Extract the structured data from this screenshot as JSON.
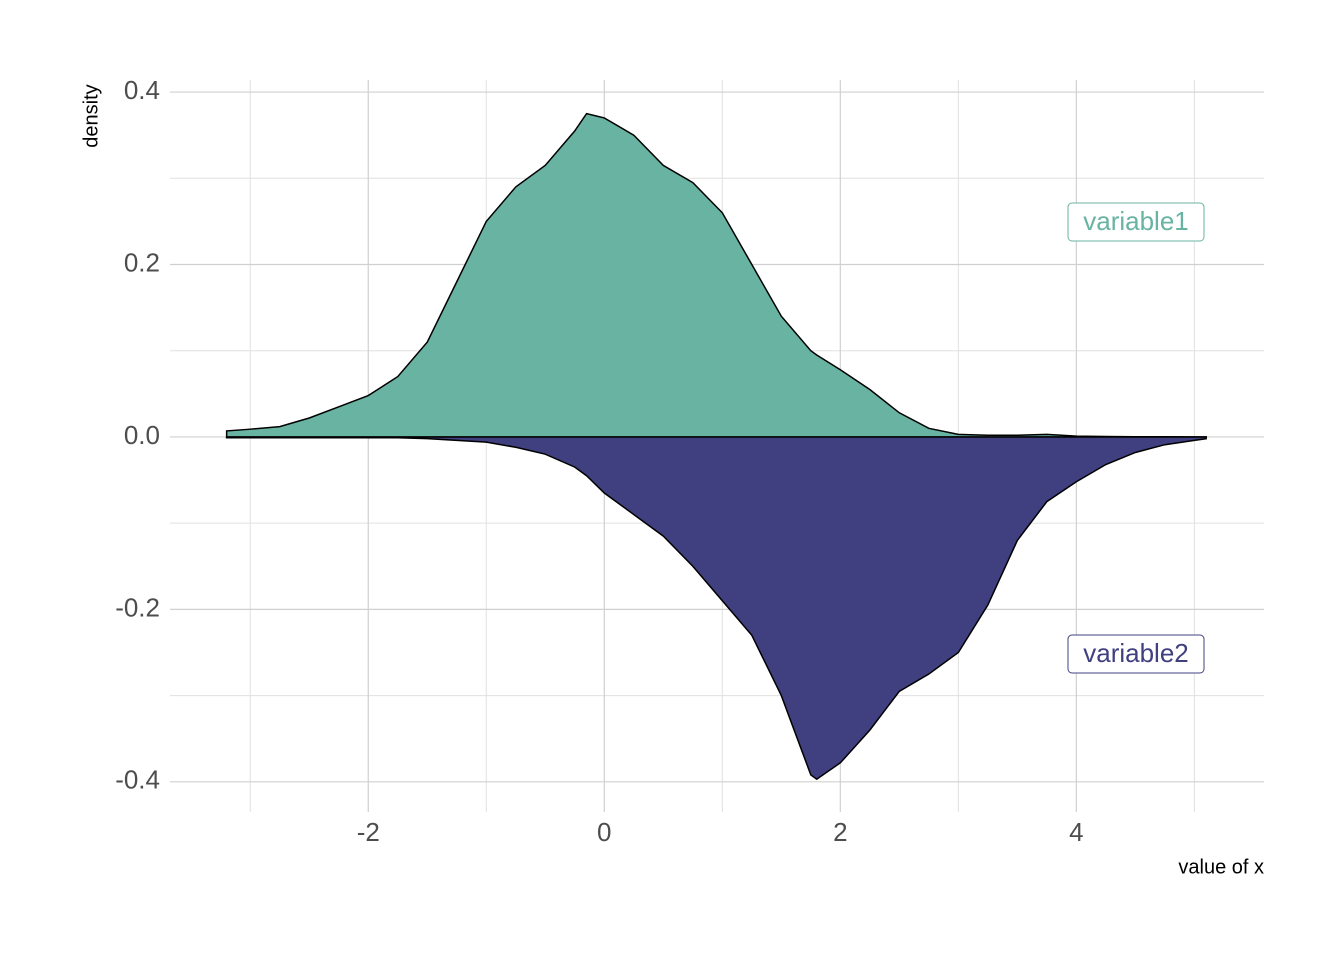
{
  "chart_data": {
    "type": "mirror-density",
    "x_label": "value of x",
    "y_label": "density",
    "x": [
      -3.2,
      -3,
      -2.75,
      -2.5,
      -2.25,
      -2,
      -1.75,
      -1.5,
      -1.25,
      -1,
      -0.75,
      -0.5,
      -0.25,
      -0.15,
      0,
      0.25,
      0.5,
      0.75,
      1,
      1.25,
      1.5,
      1.75,
      1.8,
      2,
      2.25,
      2.5,
      2.75,
      3,
      3.25,
      3.5,
      3.75,
      4,
      4.25,
      4.5,
      4.75,
      5,
      5.1
    ],
    "series": [
      {
        "name": "variable1",
        "color": "#69b3a2",
        "values": [
          0.007,
          0.009,
          0.012,
          0.022,
          0.035,
          0.048,
          0.07,
          0.11,
          0.18,
          0.25,
          0.29,
          0.315,
          0.355,
          0.375,
          0.37,
          0.35,
          0.315,
          0.295,
          0.26,
          0.2,
          0.14,
          0.1,
          0.095,
          0.078,
          0.055,
          0.028,
          0.01,
          0.003,
          0.002,
          0.002,
          0.003,
          0.001,
          0.0005,
          0.0003,
          0.0002,
          0.0001,
          0.0001
        ]
      },
      {
        "name": "variable2",
        "color": "#404080",
        "values": [
          -0.001,
          -0.001,
          -0.001,
          -0.001,
          -0.001,
          -0.001,
          -0.001,
          -0.002,
          -0.004,
          -0.006,
          -0.012,
          -0.02,
          -0.035,
          -0.045,
          -0.065,
          -0.09,
          -0.115,
          -0.15,
          -0.19,
          -0.23,
          -0.3,
          -0.392,
          -0.397,
          -0.378,
          -0.34,
          -0.295,
          -0.275,
          -0.25,
          -0.195,
          -0.12,
          -0.075,
          -0.052,
          -0.032,
          -0.018,
          -0.009,
          -0.004,
          -0.002
        ]
      }
    ],
    "xlim": [
      -3.68,
      5.59
    ],
    "ylim": [
      -0.435,
      0.414
    ],
    "xticks": [
      -2,
      0,
      2,
      4
    ],
    "xminor": [
      -3,
      -1,
      1,
      3,
      5
    ],
    "yticks": [
      -0.4,
      -0.2,
      {
        "value": 0,
        "label": "0.0"
      },
      0.2,
      0.4
    ],
    "yminor": [
      -0.3,
      -0.1,
      0.1,
      0.3
    ],
    "grid": true
  }
}
